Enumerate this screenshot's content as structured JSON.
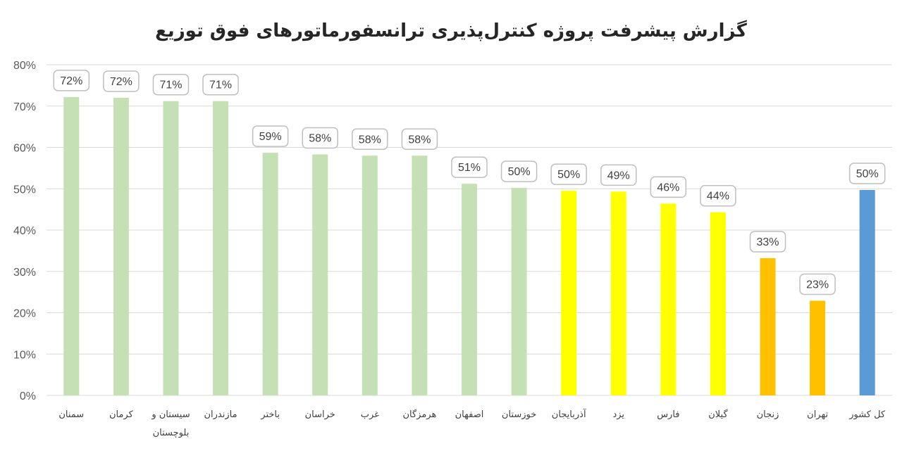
{
  "chart_data": {
    "type": "bar",
    "title": "گزارش پیشرفت پروژه کنترل‌پذیری ترانسفورماتورهای فوق توزیع",
    "xlabel": "",
    "ylabel": "",
    "ylim": [
      0,
      0.8
    ],
    "y_ticks": [
      0,
      0.1,
      0.2,
      0.3,
      0.4,
      0.5,
      0.6,
      0.7,
      0.8
    ],
    "y_tick_labels": [
      "0%",
      "10%",
      "20%",
      "30%",
      "40%",
      "50%",
      "60%",
      "70%",
      "80%"
    ],
    "grid": true,
    "legend": "none",
    "categories": [
      "سمنان",
      "کرمان",
      "سیستان و بلوچستان",
      "مازندران",
      "باختر",
      "خراسان",
      "غرب",
      "هرمزگان",
      "اصفهان",
      "خوزستان",
      "آذربایجان",
      "یزد",
      "فارس",
      "گیلان",
      "زنجان",
      "تهران",
      "کل کشور"
    ],
    "values": [
      0.722,
      0.72,
      0.712,
      0.712,
      0.587,
      0.583,
      0.58,
      0.58,
      0.512,
      0.502,
      0.495,
      0.493,
      0.464,
      0.443,
      0.332,
      0.229,
      0.497
    ],
    "value_labels": [
      "72%",
      "72%",
      "71%",
      "71%",
      "59%",
      "58%",
      "58%",
      "58%",
      "51%",
      "50%",
      "50%",
      "49%",
      "46%",
      "44%",
      "33%",
      "23%",
      "50%"
    ],
    "colors": [
      "#c5e0b4",
      "#c5e0b4",
      "#c5e0b4",
      "#c5e0b4",
      "#c5e0b4",
      "#c5e0b4",
      "#c5e0b4",
      "#c5e0b4",
      "#c5e0b4",
      "#c5e0b4",
      "#ffff00",
      "#ffff00",
      "#ffff00",
      "#ffff00",
      "#ffc000",
      "#ffc000",
      "#5b9bd5"
    ]
  }
}
